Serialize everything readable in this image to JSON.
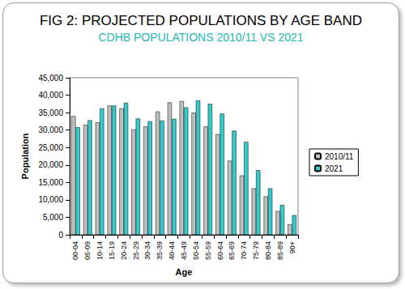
{
  "chart_data": {
    "type": "bar",
    "title": "FIG 2: PROJECTED POPULATIONS BY AGE BAND",
    "subtitle": "CDHB POPULATIONS 2010/11 VS 2021",
    "x_label": "Age",
    "y_label": "Population",
    "categories": [
      "00-04",
      "05-09",
      "10-14",
      "15-19",
      "20-24",
      "25-29",
      "30-34",
      "35-39",
      "40-44",
      "45-49",
      "50-54",
      "55-59",
      "60-64",
      "65-69",
      "70-74",
      "75-79",
      "80-84",
      "85-89",
      "90+"
    ],
    "series": [
      {
        "name": "2010/11",
        "color": "#c0c0c0",
        "values": [
          34000,
          31500,
          32200,
          37000,
          36200,
          30200,
          31000,
          35300,
          37900,
          38300,
          35000,
          31000,
          28800,
          21200,
          17000,
          13300,
          11000,
          6800,
          3000
        ]
      },
      {
        "name": "2021",
        "color": "#33cccc",
        "values": [
          30800,
          32800,
          36200,
          37000,
          37800,
          33300,
          32500,
          32700,
          33200,
          36500,
          38500,
          37500,
          34700,
          29800,
          26600,
          18500,
          13300,
          8500,
          5600
        ]
      }
    ],
    "ylim": [
      0,
      45000
    ],
    "yticks": [
      0,
      5000,
      10000,
      15000,
      20000,
      25000,
      30000,
      35000,
      40000,
      45000
    ],
    "grid": false,
    "legend": "right"
  }
}
